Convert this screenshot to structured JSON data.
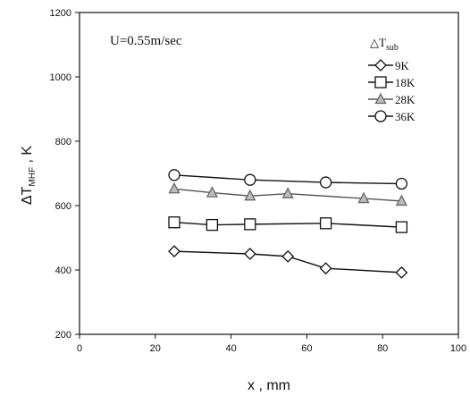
{
  "chart_data": {
    "type": "line",
    "annotation": "U=0.55m/sec",
    "legend_title": {
      "main": "△T",
      "sub": "sub"
    },
    "ylabel": {
      "main": "ΔT",
      "sub": "MHF",
      "suffix": " ,  K"
    },
    "xlabel": "x ,  mm",
    "xlim": [
      0,
      100
    ],
    "ylim": [
      200,
      1200
    ],
    "xticks": [
      "0",
      "20",
      "40",
      "60",
      "80",
      "100"
    ],
    "yticks": [
      "200",
      "400",
      "600",
      "800",
      "1000",
      "1200"
    ],
    "grid": false,
    "legend_position": "top-right",
    "series": [
      {
        "name": "9K",
        "marker": "diamond",
        "x": [
          25,
          45,
          55,
          65,
          85
        ],
        "y": [
          458,
          450,
          442,
          405,
          392
        ]
      },
      {
        "name": "18K",
        "marker": "square",
        "x": [
          25,
          35,
          45,
          65,
          85
        ],
        "y": [
          548,
          540,
          542,
          545,
          533
        ]
      },
      {
        "name": "28K",
        "marker": "triangle",
        "x": [
          25,
          35,
          45,
          55,
          75,
          85
        ],
        "y": [
          652,
          640,
          630,
          637,
          622,
          614
        ]
      },
      {
        "name": "36K",
        "marker": "circle",
        "x": [
          25,
          45,
          65,
          85
        ],
        "y": [
          695,
          680,
          672,
          668
        ]
      }
    ]
  }
}
